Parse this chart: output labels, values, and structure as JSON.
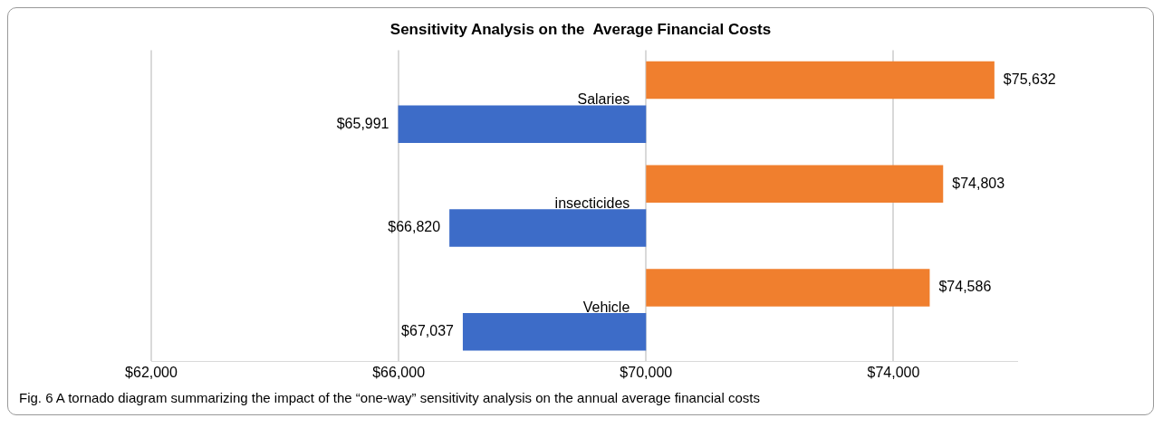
{
  "chart_data": {
    "type": "bar",
    "orientation": "horizontal",
    "title": "Sensitivity Analysis on the  Average Financial Costs",
    "categories": [
      "Salaries",
      "insecticides",
      "Vehicle"
    ],
    "series": [
      {
        "color": "#f07f2e",
        "base": [
          70000,
          70000,
          70000
        ],
        "values": [
          5632,
          4803,
          4586
        ],
        "value_labels": [
          "$75,632",
          "$74,803",
          "$74,586"
        ]
      },
      {
        "color": "#3d6cc8",
        "base": [
          70000,
          70000,
          70000
        ],
        "values": [
          -4009,
          -3180,
          -2963
        ],
        "value_labels": [
          "$65,991",
          "$66,820",
          "$67,037"
        ]
      }
    ],
    "xlim": [
      62000,
      76000
    ],
    "xticks": [
      {
        "value": 62000,
        "label": "$62,000"
      },
      {
        "value": 66000,
        "label": "$66,000"
      },
      {
        "value": 70000,
        "label": "$70,000"
      },
      {
        "value": 74000,
        "label": "$74,000"
      }
    ],
    "grid": "x",
    "legend": false,
    "annotations": [
      "Fig. 6  A tornado diagram summarizing the impact of the “one-way” sensitivity analysis on the annual average financial costs"
    ]
  }
}
